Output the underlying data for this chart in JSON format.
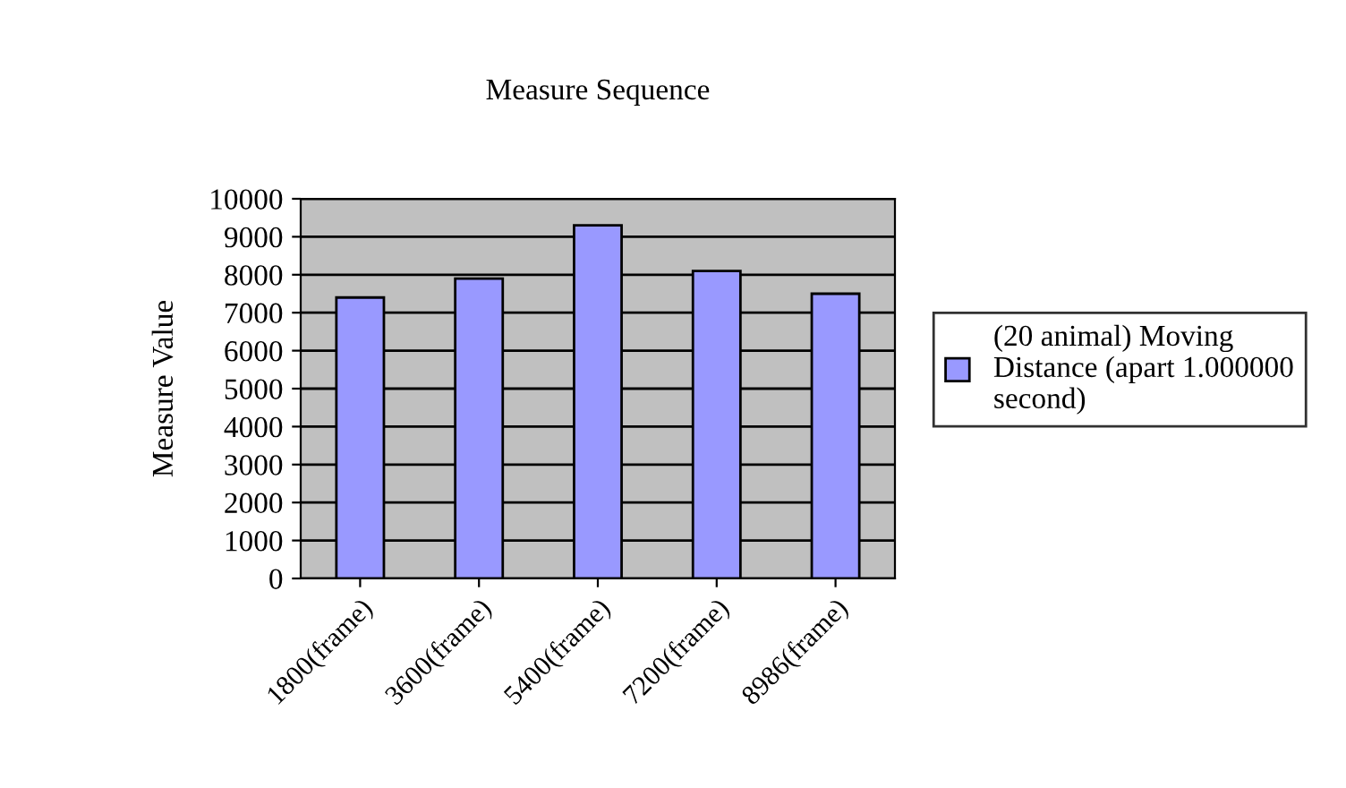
{
  "chart_data": {
    "type": "bar",
    "title": "Measure Sequence",
    "ylabel": "Measure Value",
    "categories": [
      "1800(frame)",
      "3600(frame)",
      "5400(frame)",
      "7200(frame)",
      "8986(frame)"
    ],
    "series": [
      {
        "name": "(20 animal) Moving\nDistance (apart 1.000000\nsecond)",
        "color": "#9999ff",
        "values": [
          7400,
          7900,
          9300,
          8100,
          7500
        ]
      }
    ],
    "ylim": [
      0,
      10000
    ],
    "yticks": [
      0,
      1000,
      2000,
      3000,
      4000,
      5000,
      6000,
      7000,
      8000,
      9000,
      10000
    ],
    "grid": "y",
    "legend": "right"
  }
}
